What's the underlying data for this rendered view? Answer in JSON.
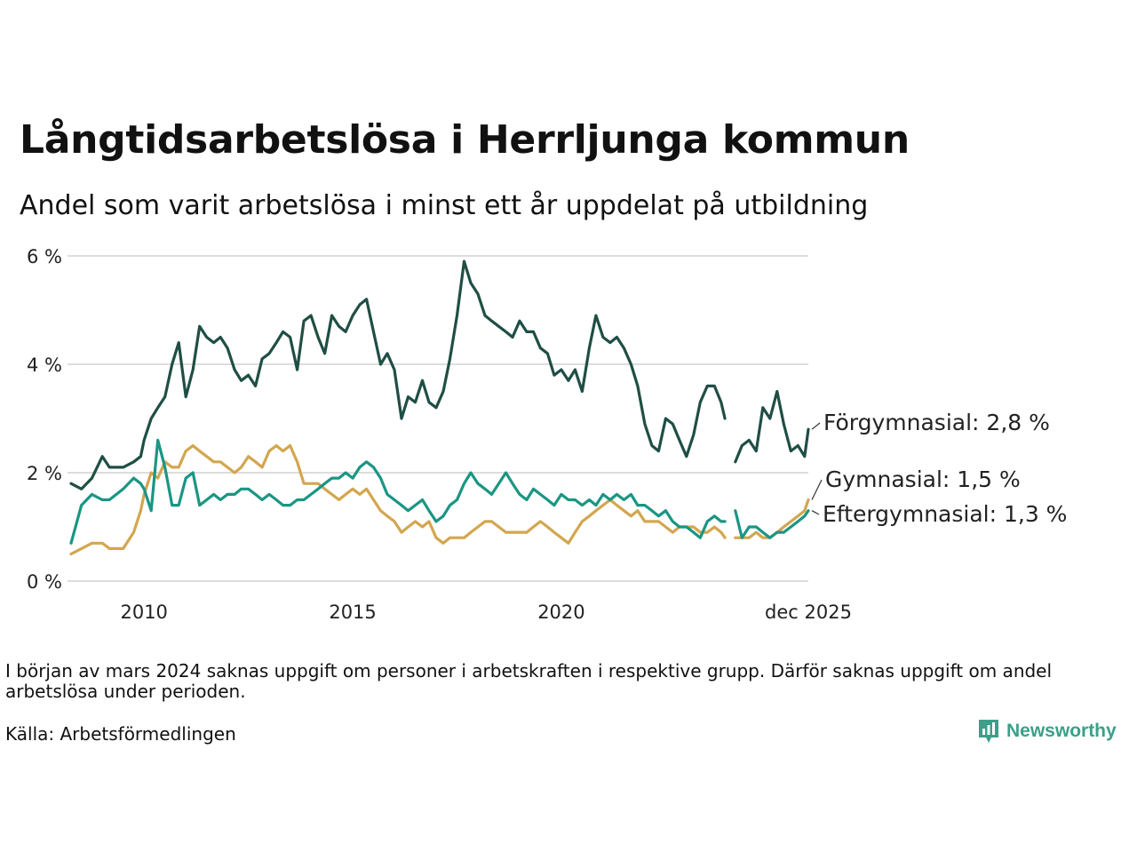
{
  "header": {
    "title": "Långtidsarbetslösa i Herrljunga kommun",
    "subtitle": "Andel som varit arbetslösa i minst ett år uppdelat på utbildning"
  },
  "footer": {
    "note": "I början av mars 2024 saknas uppgift om personer i arbetskraften i respektive grupp. Därför saknas uppgift om andel arbetslösa under perioden.",
    "source": "Källa: Arbetsförmedlingen",
    "brand": "Newsworthy"
  },
  "colors": {
    "forgymnasial": "#1f4e45",
    "gymnasial": "#d3a64f",
    "eftergymnasial": "#1a9683",
    "grid": "#dddddd",
    "brand": "#3aa089"
  },
  "chart_data": {
    "type": "line",
    "title": "Långtidsarbetslösa i Herrljunga kommun",
    "ylim": [
      0,
      6
    ],
    "yticks": [
      0,
      2,
      4,
      6
    ],
    "ytick_labels": [
      "0 %",
      "2 %",
      "4 %",
      "6 %"
    ],
    "xlim": [
      2008.25,
      2025.92
    ],
    "xticks": [
      2010,
      2015,
      2020,
      2025.92
    ],
    "xtick_labels": [
      "2010",
      "2015",
      "2020",
      "dec 2025"
    ],
    "grid": true,
    "gap": [
      2023.92,
      2024.17
    ],
    "series": [
      {
        "name": "Förgymnasial",
        "label": "Förgymnasial: 2,8 %",
        "color": "#1f4e45",
        "x": [
          2008.25,
          2008.5,
          2008.75,
          2009.0,
          2009.17,
          2009.5,
          2009.75,
          2009.92,
          2010.0,
          2010.17,
          2010.33,
          2010.5,
          2010.67,
          2010.83,
          2011.0,
          2011.17,
          2011.33,
          2011.5,
          2011.67,
          2011.83,
          2012.0,
          2012.17,
          2012.33,
          2012.5,
          2012.67,
          2012.83,
          2013.0,
          2013.17,
          2013.33,
          2013.5,
          2013.67,
          2013.83,
          2014.0,
          2014.17,
          2014.33,
          2014.5,
          2014.67,
          2014.83,
          2015.0,
          2015.17,
          2015.33,
          2015.5,
          2015.67,
          2015.83,
          2016.0,
          2016.17,
          2016.33,
          2016.5,
          2016.67,
          2016.83,
          2017.0,
          2017.17,
          2017.33,
          2017.5,
          2017.67,
          2017.83,
          2018.0,
          2018.17,
          2018.33,
          2018.5,
          2018.67,
          2018.83,
          2019.0,
          2019.17,
          2019.33,
          2019.5,
          2019.67,
          2019.83,
          2020.0,
          2020.17,
          2020.33,
          2020.5,
          2020.67,
          2020.83,
          2021.0,
          2021.17,
          2021.33,
          2021.5,
          2021.67,
          2021.83,
          2022.0,
          2022.17,
          2022.33,
          2022.5,
          2022.67,
          2022.83,
          2023.0,
          2023.17,
          2023.33,
          2023.5,
          2023.67,
          2023.83,
          2023.92,
          2024.17,
          2024.33,
          2024.5,
          2024.67,
          2024.83,
          2025.0,
          2025.17,
          2025.33,
          2025.5,
          2025.67,
          2025.83,
          2025.92
        ],
        "values": [
          1.8,
          1.7,
          1.9,
          2.3,
          2.1,
          2.1,
          2.2,
          2.3,
          2.6,
          3.0,
          3.2,
          3.4,
          4.0,
          4.4,
          3.4,
          3.9,
          4.7,
          4.5,
          4.4,
          4.5,
          4.3,
          3.9,
          3.7,
          3.8,
          3.6,
          4.1,
          4.2,
          4.4,
          4.6,
          4.5,
          3.9,
          4.8,
          4.9,
          4.5,
          4.2,
          4.9,
          4.7,
          4.6,
          4.9,
          5.1,
          5.2,
          4.6,
          4.0,
          4.2,
          3.9,
          3.0,
          3.4,
          3.3,
          3.7,
          3.3,
          3.2,
          3.5,
          4.1,
          4.9,
          5.9,
          5.5,
          5.3,
          4.9,
          4.8,
          4.7,
          4.6,
          4.5,
          4.8,
          4.6,
          4.6,
          4.3,
          4.2,
          3.8,
          3.9,
          3.7,
          3.9,
          3.5,
          4.3,
          4.9,
          4.5,
          4.4,
          4.5,
          4.3,
          4.0,
          3.6,
          2.9,
          2.5,
          2.4,
          3.0,
          2.9,
          2.6,
          2.3,
          2.7,
          3.3,
          3.6,
          3.6,
          3.3,
          3.0,
          2.2,
          2.5,
          2.6,
          2.4,
          3.2,
          3.0,
          3.5,
          2.9,
          2.4,
          2.5,
          2.3,
          2.8
        ]
      },
      {
        "name": "Gymnasial",
        "label": "Gymnasial: 1,5 %",
        "color": "#d3a64f",
        "x": [
          2008.25,
          2008.5,
          2008.75,
          2009.0,
          2009.17,
          2009.5,
          2009.75,
          2009.92,
          2010.0,
          2010.17,
          2010.33,
          2010.5,
          2010.67,
          2010.83,
          2011.0,
          2011.17,
          2011.33,
          2011.5,
          2011.67,
          2011.83,
          2012.0,
          2012.17,
          2012.33,
          2012.5,
          2012.67,
          2012.83,
          2013.0,
          2013.17,
          2013.33,
          2013.5,
          2013.67,
          2013.83,
          2014.0,
          2014.17,
          2014.33,
          2014.5,
          2014.67,
          2014.83,
          2015.0,
          2015.17,
          2015.33,
          2015.5,
          2015.67,
          2015.83,
          2016.0,
          2016.17,
          2016.33,
          2016.5,
          2016.67,
          2016.83,
          2017.0,
          2017.17,
          2017.33,
          2017.5,
          2017.67,
          2017.83,
          2018.0,
          2018.17,
          2018.33,
          2018.5,
          2018.67,
          2018.83,
          2019.0,
          2019.17,
          2019.33,
          2019.5,
          2019.67,
          2019.83,
          2020.0,
          2020.17,
          2020.33,
          2020.5,
          2020.67,
          2020.83,
          2021.0,
          2021.17,
          2021.33,
          2021.5,
          2021.67,
          2021.83,
          2022.0,
          2022.17,
          2022.33,
          2022.5,
          2022.67,
          2022.83,
          2023.0,
          2023.17,
          2023.33,
          2023.5,
          2023.67,
          2023.83,
          2023.92,
          2024.17,
          2024.33,
          2024.5,
          2024.67,
          2024.83,
          2025.0,
          2025.17,
          2025.33,
          2025.5,
          2025.67,
          2025.83,
          2025.92
        ],
        "values": [
          0.5,
          0.6,
          0.7,
          0.7,
          0.6,
          0.6,
          0.9,
          1.3,
          1.6,
          2.0,
          1.9,
          2.2,
          2.1,
          2.1,
          2.4,
          2.5,
          2.4,
          2.3,
          2.2,
          2.2,
          2.1,
          2.0,
          2.1,
          2.3,
          2.2,
          2.1,
          2.4,
          2.5,
          2.4,
          2.5,
          2.2,
          1.8,
          1.8,
          1.8,
          1.7,
          1.6,
          1.5,
          1.6,
          1.7,
          1.6,
          1.7,
          1.5,
          1.3,
          1.2,
          1.1,
          0.9,
          1.0,
          1.1,
          1.0,
          1.1,
          0.8,
          0.7,
          0.8,
          0.8,
          0.8,
          0.9,
          1.0,
          1.1,
          1.1,
          1.0,
          0.9,
          0.9,
          0.9,
          0.9,
          1.0,
          1.1,
          1.0,
          0.9,
          0.8,
          0.7,
          0.9,
          1.1,
          1.2,
          1.3,
          1.4,
          1.5,
          1.4,
          1.3,
          1.2,
          1.3,
          1.1,
          1.1,
          1.1,
          1.0,
          0.9,
          1.0,
          1.0,
          1.0,
          0.9,
          0.9,
          1.0,
          0.9,
          0.8,
          0.8,
          0.8,
          0.8,
          0.9,
          0.8,
          0.8,
          0.9,
          1.0,
          1.1,
          1.2,
          1.3,
          1.5
        ]
      },
      {
        "name": "Eftergymnasial",
        "label": "Eftergymnasial: 1,3 %",
        "color": "#1a9683",
        "x": [
          2008.25,
          2008.5,
          2008.75,
          2009.0,
          2009.17,
          2009.5,
          2009.75,
          2009.92,
          2010.0,
          2010.17,
          2010.33,
          2010.5,
          2010.67,
          2010.83,
          2011.0,
          2011.17,
          2011.33,
          2011.5,
          2011.67,
          2011.83,
          2012.0,
          2012.17,
          2012.33,
          2012.5,
          2012.67,
          2012.83,
          2013.0,
          2013.17,
          2013.33,
          2013.5,
          2013.67,
          2013.83,
          2014.0,
          2014.17,
          2014.33,
          2014.5,
          2014.67,
          2014.83,
          2015.0,
          2015.17,
          2015.33,
          2015.5,
          2015.67,
          2015.83,
          2016.0,
          2016.17,
          2016.33,
          2016.5,
          2016.67,
          2016.83,
          2017.0,
          2017.17,
          2017.33,
          2017.5,
          2017.67,
          2017.83,
          2018.0,
          2018.17,
          2018.33,
          2018.5,
          2018.67,
          2018.83,
          2019.0,
          2019.17,
          2019.33,
          2019.5,
          2019.67,
          2019.83,
          2020.0,
          2020.17,
          2020.33,
          2020.5,
          2020.67,
          2020.83,
          2021.0,
          2021.17,
          2021.33,
          2021.5,
          2021.67,
          2021.83,
          2022.0,
          2022.17,
          2022.33,
          2022.5,
          2022.67,
          2022.83,
          2023.0,
          2023.17,
          2023.33,
          2023.5,
          2023.67,
          2023.83,
          2023.92,
          2024.17,
          2024.33,
          2024.5,
          2024.67,
          2024.83,
          2025.0,
          2025.17,
          2025.33,
          2025.5,
          2025.67,
          2025.83,
          2025.92
        ],
        "values": [
          0.7,
          1.4,
          1.6,
          1.5,
          1.5,
          1.7,
          1.9,
          1.8,
          1.7,
          1.3,
          2.6,
          2.1,
          1.4,
          1.4,
          1.9,
          2.0,
          1.4,
          1.5,
          1.6,
          1.5,
          1.6,
          1.6,
          1.7,
          1.7,
          1.6,
          1.5,
          1.6,
          1.5,
          1.4,
          1.4,
          1.5,
          1.5,
          1.6,
          1.7,
          1.8,
          1.9,
          1.9,
          2.0,
          1.9,
          2.1,
          2.2,
          2.1,
          1.9,
          1.6,
          1.5,
          1.4,
          1.3,
          1.4,
          1.5,
          1.3,
          1.1,
          1.2,
          1.4,
          1.5,
          1.8,
          2.0,
          1.8,
          1.7,
          1.6,
          1.8,
          2.0,
          1.8,
          1.6,
          1.5,
          1.7,
          1.6,
          1.5,
          1.4,
          1.6,
          1.5,
          1.5,
          1.4,
          1.5,
          1.4,
          1.6,
          1.5,
          1.6,
          1.5,
          1.6,
          1.4,
          1.4,
          1.3,
          1.2,
          1.3,
          1.1,
          1.0,
          1.0,
          0.9,
          0.8,
          1.1,
          1.2,
          1.1,
          1.1,
          1.3,
          0.8,
          1.0,
          1.0,
          0.9,
          0.8,
          0.9,
          0.9,
          1.0,
          1.1,
          1.2,
          1.3
        ]
      }
    ]
  }
}
